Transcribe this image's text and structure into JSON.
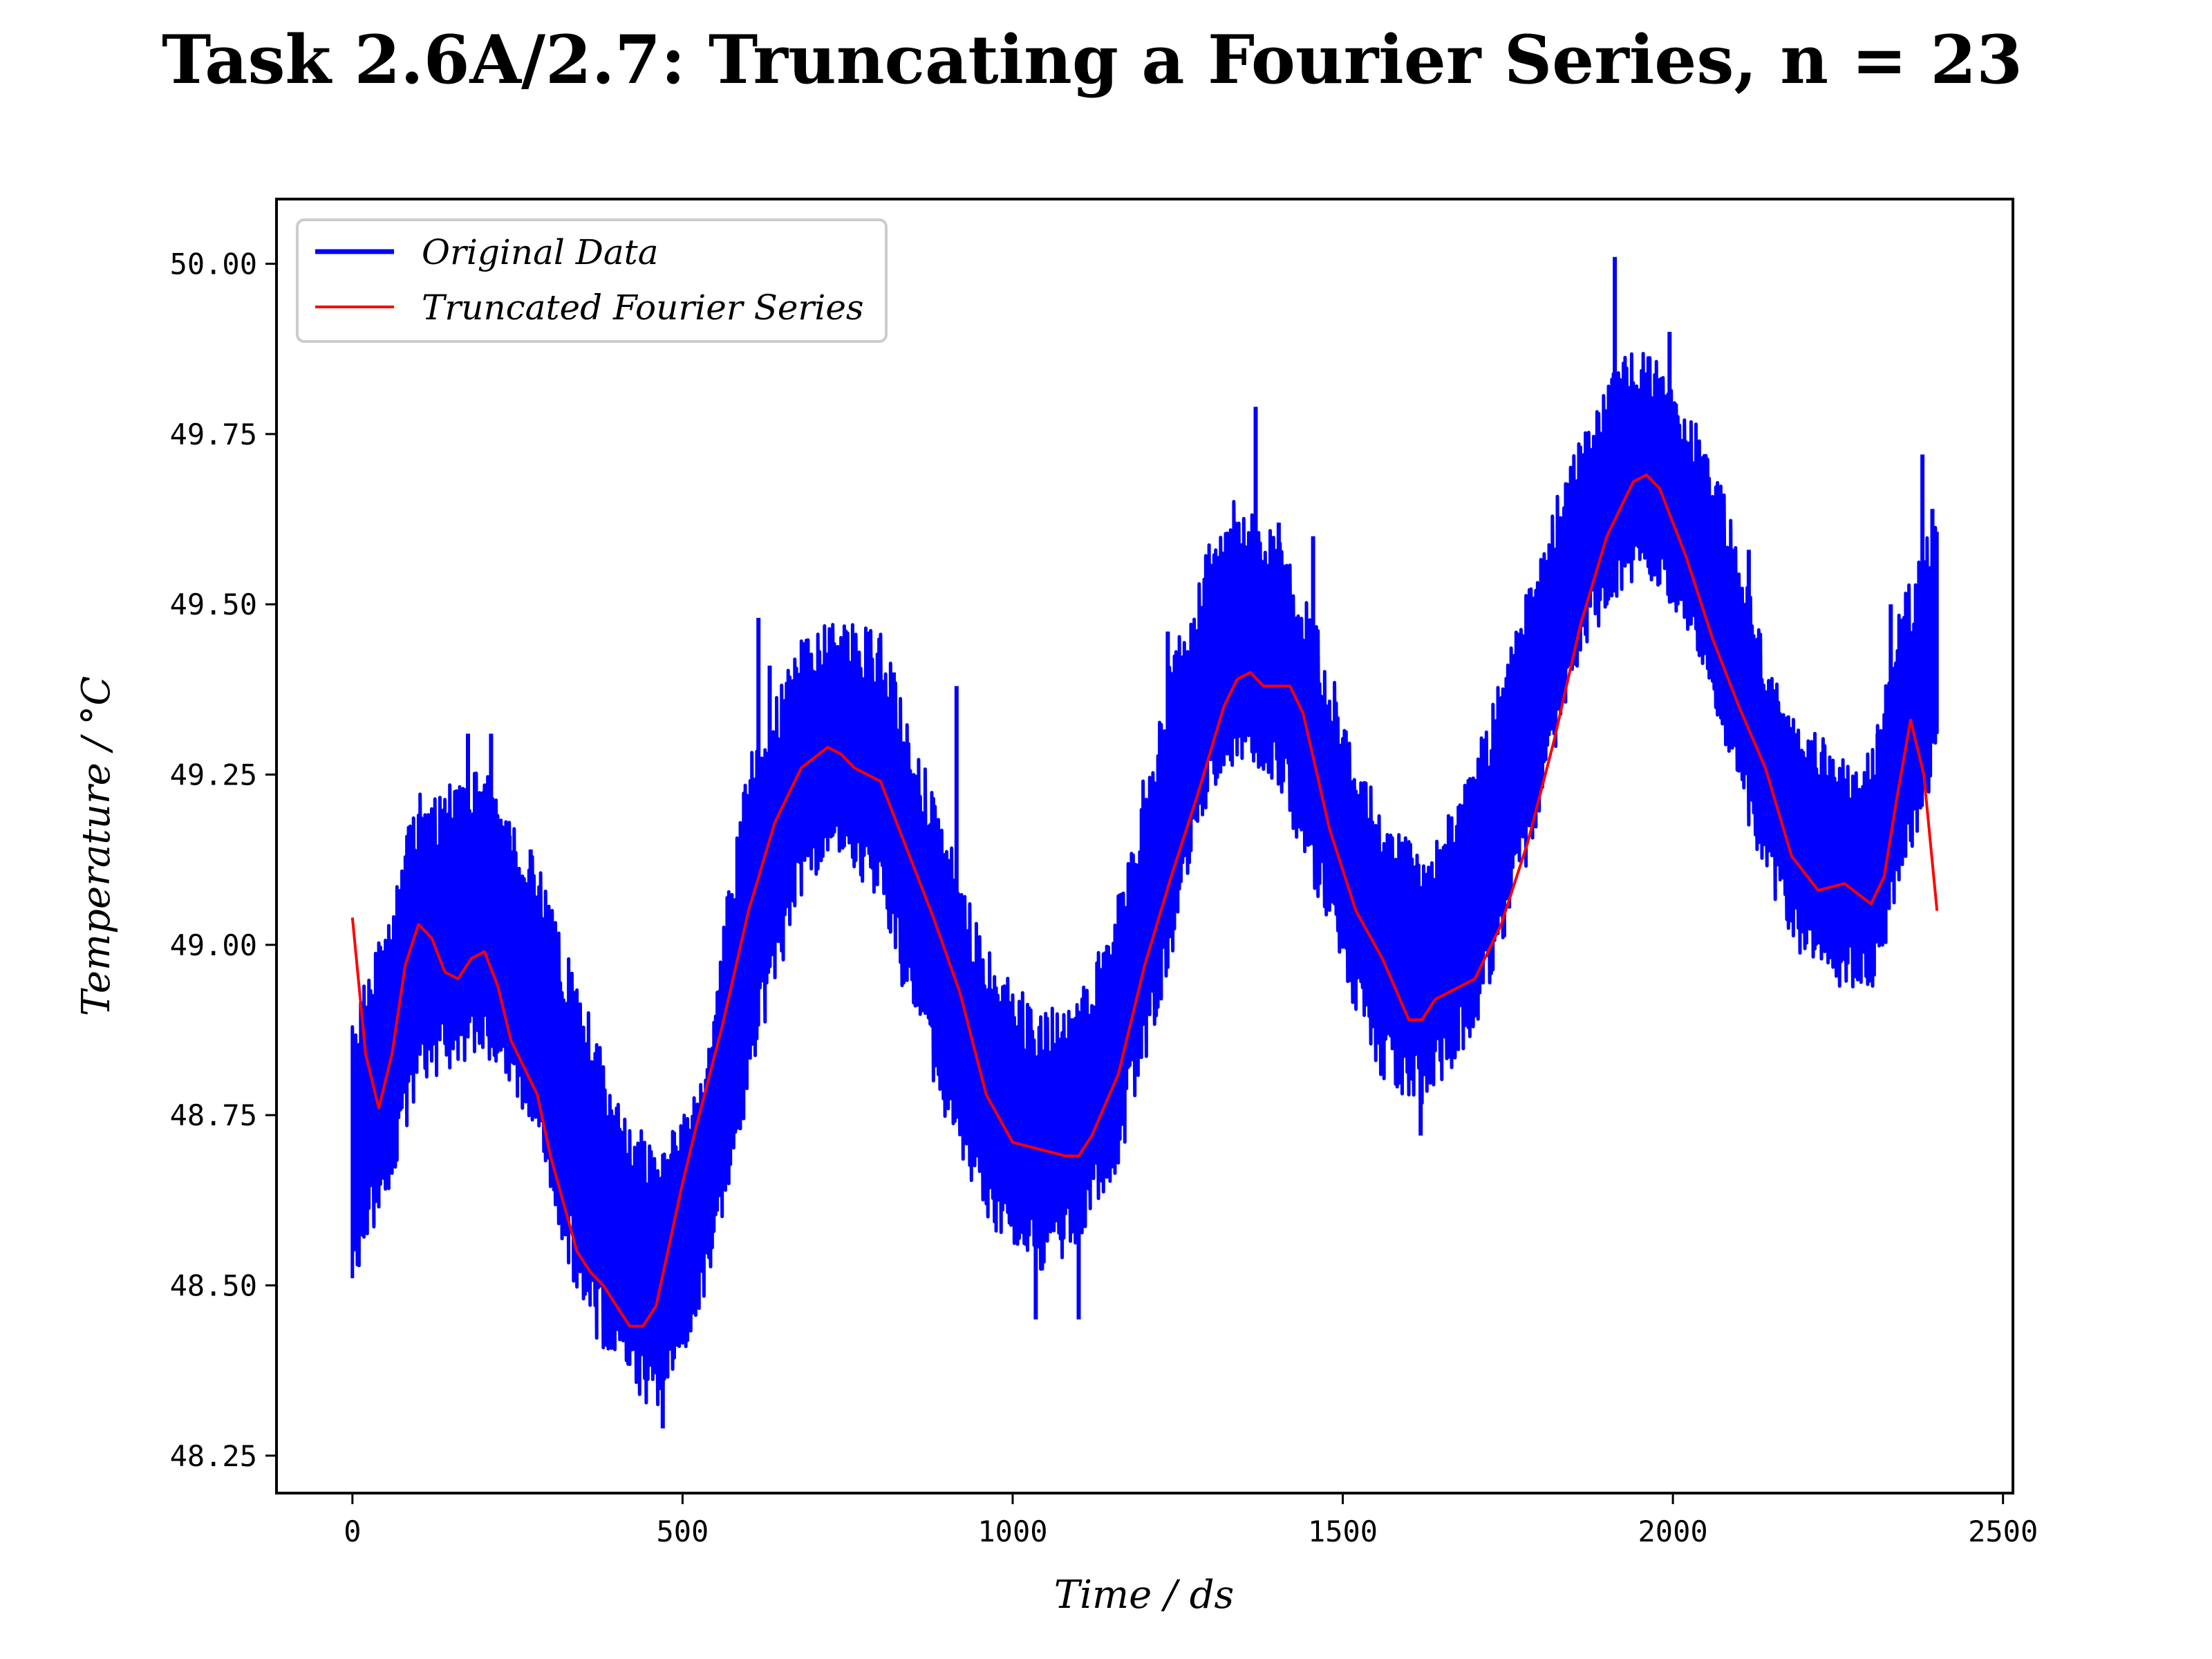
{
  "chart_data": {
    "type": "line",
    "title": "Task 2.6A/2.7: Truncating a Fourier Series, n = 23",
    "xlabel": "Time / ds",
    "ylabel": "Temperature / °C",
    "xlim": [
      -115,
      2515
    ],
    "ylim": [
      48.195,
      50.095
    ],
    "x_ticks": [
      0,
      500,
      1000,
      1500,
      2000,
      2500
    ],
    "x_tick_labels": [
      "0",
      "500",
      "1000",
      "1500",
      "2000",
      "2500"
    ],
    "y_ticks": [
      48.25,
      48.5,
      48.75,
      49.0,
      49.25,
      49.5,
      49.75,
      50.0
    ],
    "y_tick_labels": [
      "48.25",
      "48.50",
      "48.75",
      "49.00",
      "49.25",
      "49.50",
      "49.75",
      "50.00"
    ],
    "grid": false,
    "legend_position": "top-left",
    "series": [
      {
        "name": "Original Data",
        "color": "#0000ff",
        "style": "thick-noisy-band",
        "envelope": {
          "x": [
            0,
            40,
            100,
            200,
            280,
            350,
            400,
            460,
            520,
            600,
            680,
            730,
            800,
            880,
            960,
            1040,
            1100,
            1160,
            1240,
            1300,
            1340,
            1400,
            1460,
            1520,
            1560,
            1620,
            1700,
            1780,
            1860,
            1920,
            1960,
            2020,
            2080,
            2140,
            2200,
            2250,
            2300,
            2350,
            2400
          ],
          "lower": [
            48.49,
            48.55,
            48.77,
            48.82,
            48.68,
            48.42,
            48.35,
            48.29,
            48.4,
            48.75,
            49.05,
            49.12,
            49.03,
            48.75,
            48.57,
            48.5,
            48.53,
            48.65,
            48.95,
            49.2,
            49.25,
            49.22,
            49.05,
            48.88,
            48.78,
            48.73,
            48.85,
            49.1,
            49.4,
            49.5,
            49.52,
            49.45,
            49.25,
            49.08,
            48.95,
            48.92,
            48.9,
            49.05,
            49.25
          ],
          "upper": [
            48.9,
            49.05,
            49.25,
            49.28,
            49.15,
            48.95,
            48.8,
            48.72,
            48.8,
            49.3,
            49.48,
            49.5,
            49.48,
            49.25,
            49.02,
            48.92,
            48.95,
            49.1,
            49.45,
            49.62,
            49.68,
            49.62,
            49.5,
            49.3,
            49.22,
            49.15,
            49.3,
            49.55,
            49.78,
            49.88,
            49.9,
            49.82,
            49.68,
            49.45,
            49.35,
            49.3,
            49.3,
            49.55,
            49.65
          ]
        },
        "spikes": [
          {
            "x": 175,
            "y": 49.31
          },
          {
            "x": 210,
            "y": 49.31
          },
          {
            "x": 238,
            "y": 49.16
          },
          {
            "x": 270,
            "y": 49.14
          },
          {
            "x": 470,
            "y": 48.29
          },
          {
            "x": 615,
            "y": 49.48
          },
          {
            "x": 632,
            "y": 49.41
          },
          {
            "x": 683,
            "y": 49.24
          },
          {
            "x": 820,
            "y": 49.4
          },
          {
            "x": 915,
            "y": 49.38
          },
          {
            "x": 1035,
            "y": 48.45
          },
          {
            "x": 1100,
            "y": 48.45
          },
          {
            "x": 1235,
            "y": 49.46
          },
          {
            "x": 1368,
            "y": 49.79
          },
          {
            "x": 1403,
            "y": 49.62
          },
          {
            "x": 1455,
            "y": 49.6
          },
          {
            "x": 1618,
            "y": 48.72
          },
          {
            "x": 1912,
            "y": 50.01
          },
          {
            "x": 1930,
            "y": 49.78
          },
          {
            "x": 1995,
            "y": 49.9
          },
          {
            "x": 2075,
            "y": 49.58
          },
          {
            "x": 2115,
            "y": 49.58
          },
          {
            "x": 2310,
            "y": 49.31
          },
          {
            "x": 2330,
            "y": 49.5
          },
          {
            "x": 2378,
            "y": 49.72
          },
          {
            "x": 2393,
            "y": 49.64
          }
        ]
      },
      {
        "name": "Truncated Fourier Series",
        "color": "#ff0000",
        "x": [
          0,
          20,
          40,
          60,
          80,
          100,
          120,
          140,
          160,
          180,
          200,
          220,
          240,
          260,
          280,
          300,
          320,
          340,
          360,
          380,
          400,
          420,
          440,
          460,
          480,
          500,
          520,
          560,
          600,
          640,
          680,
          720,
          740,
          760,
          800,
          840,
          880,
          920,
          960,
          1000,
          1040,
          1080,
          1100,
          1120,
          1160,
          1200,
          1240,
          1280,
          1320,
          1340,
          1360,
          1380,
          1400,
          1420,
          1440,
          1480,
          1520,
          1560,
          1600,
          1620,
          1640,
          1660,
          1700,
          1740,
          1780,
          1820,
          1860,
          1900,
          1940,
          1960,
          1980,
          2020,
          2060,
          2100,
          2140,
          2180,
          2220,
          2260,
          2300,
          2320,
          2340,
          2360,
          2380,
          2400
        ],
        "y": [
          49.04,
          48.84,
          48.76,
          48.84,
          48.97,
          49.03,
          49.01,
          48.96,
          48.95,
          48.98,
          48.99,
          48.94,
          48.86,
          48.82,
          48.78,
          48.69,
          48.62,
          48.55,
          48.52,
          48.5,
          48.47,
          48.44,
          48.44,
          48.47,
          48.56,
          48.65,
          48.73,
          48.88,
          49.05,
          49.18,
          49.26,
          49.29,
          49.28,
          49.26,
          49.24,
          49.14,
          49.04,
          48.93,
          48.78,
          48.71,
          48.7,
          48.69,
          48.69,
          48.72,
          48.81,
          48.97,
          49.1,
          49.22,
          49.35,
          49.39,
          49.4,
          49.38,
          49.38,
          49.38,
          49.34,
          49.17,
          49.05,
          48.98,
          48.89,
          48.89,
          48.92,
          48.93,
          48.95,
          49.03,
          49.15,
          49.3,
          49.47,
          49.6,
          49.68,
          49.69,
          49.67,
          49.57,
          49.45,
          49.35,
          49.26,
          49.13,
          49.08,
          49.09,
          49.06,
          49.1,
          49.22,
          49.33,
          49.25,
          49.05
        ]
      }
    ]
  }
}
